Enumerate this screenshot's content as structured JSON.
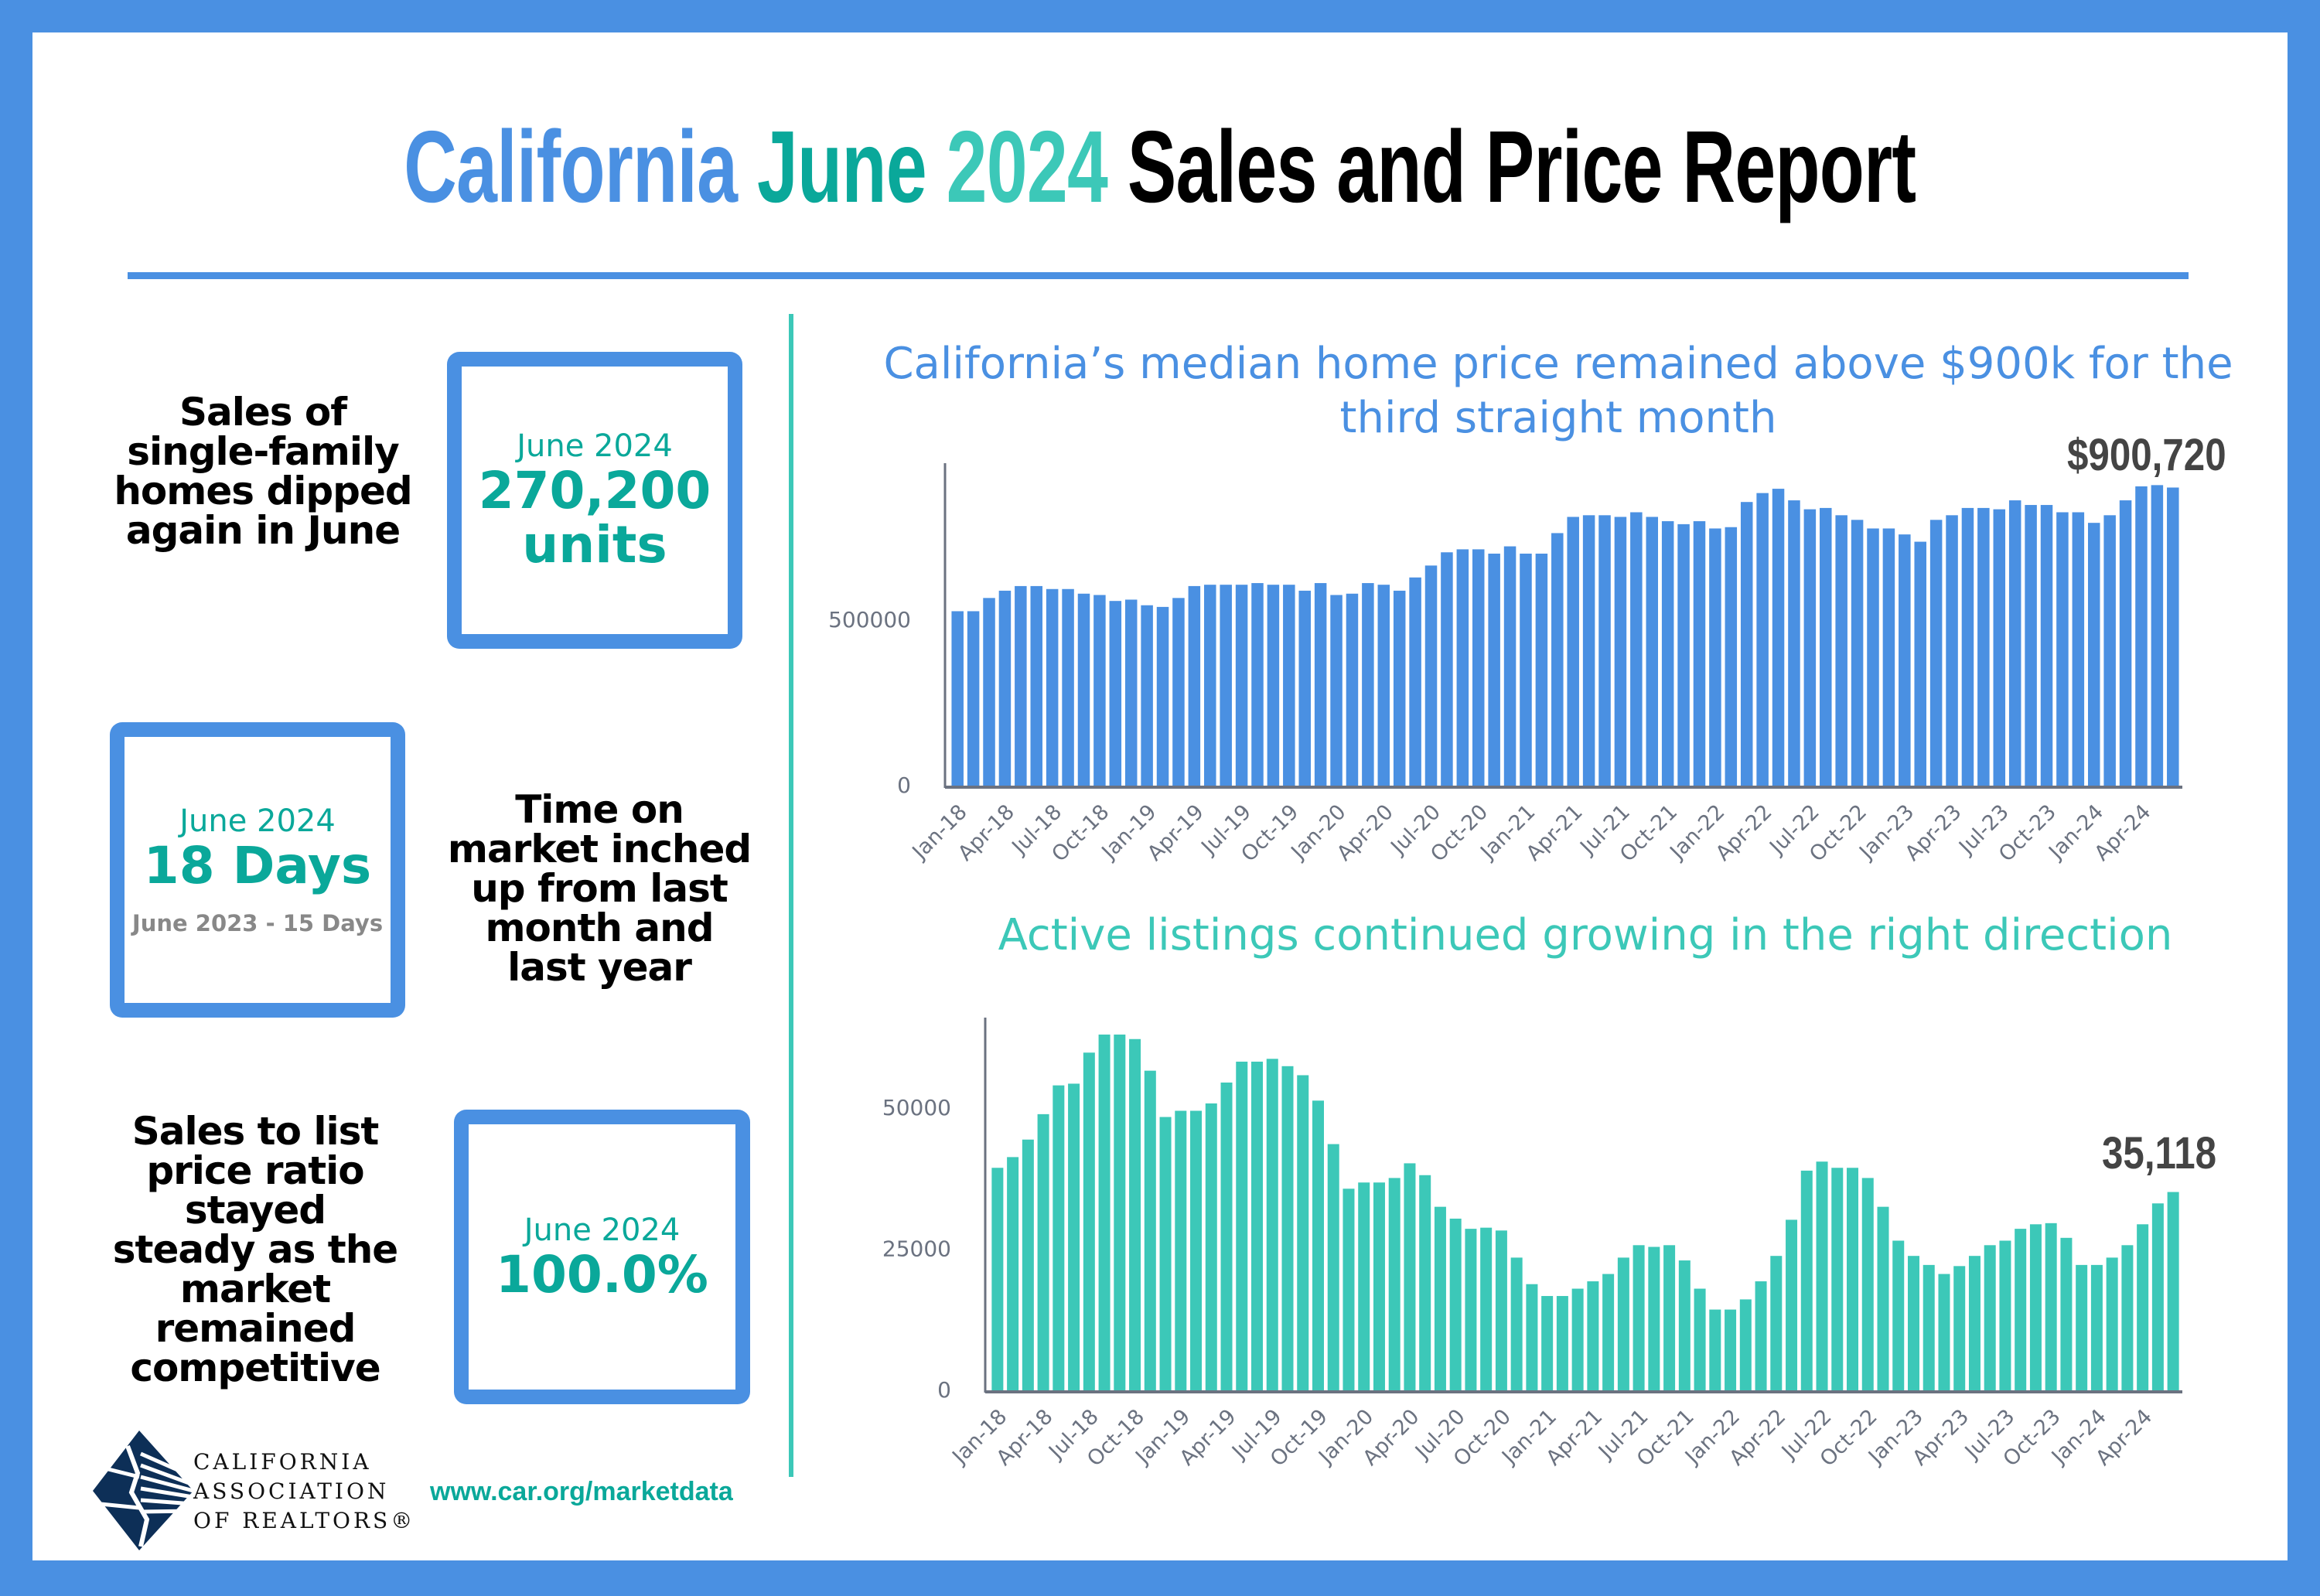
{
  "title": {
    "part1": "California",
    "part2": "June",
    "part3": "2024",
    "part4": "Sales and Price Report"
  },
  "colors": {
    "frame": "#4a90e2",
    "teal": "#0aa89a",
    "light_teal": "#3cc8b8",
    "price_bars": "#4a90e2",
    "listing_bars": "#3cc8b8"
  },
  "left": {
    "sales": {
      "description": "Sales of single-family homes dipped again in June",
      "period": "June 2024",
      "value": "270,200",
      "unit": "units"
    },
    "time_on_market": {
      "description": "Time on market inched up from last month and last year",
      "period": "June 2024",
      "value": "18 Days",
      "comparison": "June 2023 - 15 Days"
    },
    "sales_to_list": {
      "description": "Sales to list price ratio stayed steady as the market remained competitive",
      "period": "June 2024",
      "value": "100.0%"
    }
  },
  "logo": {
    "lines": [
      "CALIFORNIA",
      "ASSOCIATION",
      "OF REALTORS®"
    ]
  },
  "footer": {
    "url": "www.car.org/marketdata"
  },
  "chart_data": [
    {
      "type": "bar",
      "title": "California’s median home price remained above $900k for the third straight month",
      "callout": "$900,720",
      "ylim": [
        0,
        1000000
      ],
      "yticks": [
        "0",
        "500000"
      ],
      "grid": false,
      "x": [
        "Jan-18",
        "Feb-18",
        "Mar-18",
        "Apr-18",
        "May-18",
        "Jun-18",
        "Jul-18",
        "Aug-18",
        "Sep-18",
        "Oct-18",
        "Nov-18",
        "Dec-18",
        "Jan-19",
        "Feb-19",
        "Mar-19",
        "Apr-19",
        "May-19",
        "Jun-19",
        "Jul-19",
        "Aug-19",
        "Sep-19",
        "Oct-19",
        "Nov-19",
        "Dec-19",
        "Jan-20",
        "Feb-20",
        "Mar-20",
        "Apr-20",
        "May-20",
        "Jun-20",
        "Jul-20",
        "Aug-20",
        "Sep-20",
        "Oct-20",
        "Nov-20",
        "Dec-20",
        "Jan-21",
        "Feb-21",
        "Mar-21",
        "Apr-21",
        "May-21",
        "Jun-21",
        "Jul-21",
        "Aug-21",
        "Sep-21",
        "Oct-21",
        "Nov-21",
        "Dec-21",
        "Jan-22",
        "Feb-22",
        "Mar-22",
        "Apr-22",
        "May-22",
        "Jun-22",
        "Jul-22",
        "Aug-22",
        "Sep-22",
        "Oct-22",
        "Nov-22",
        "Dec-22",
        "Jan-23",
        "Feb-23",
        "Mar-23",
        "Apr-23",
        "May-23",
        "Jun-23",
        "Jul-23",
        "Aug-23",
        "Sep-23",
        "Oct-23",
        "Nov-23",
        "Dec-23",
        "Jan-24",
        "Feb-24",
        "Mar-24",
        "Apr-24",
        "May-24",
        "Jun-24"
      ],
      "values": [
        527000,
        527000,
        567000,
        589000,
        603000,
        603000,
        594000,
        594000,
        580000,
        576000,
        558000,
        562000,
        545000,
        540000,
        567000,
        603000,
        607000,
        607000,
        607000,
        612000,
        607000,
        607000,
        589000,
        612000,
        576000,
        580000,
        612000,
        607000,
        589000,
        629000,
        665000,
        705000,
        714000,
        714000,
        701000,
        723000,
        701000,
        701000,
        763000,
        812000,
        817000,
        817000,
        812000,
        826000,
        812000,
        799000,
        790000,
        799000,
        777000,
        781000,
        857000,
        884000,
        897000,
        862000,
        835000,
        839000,
        817000,
        803000,
        777000,
        777000,
        759000,
        737000,
        803000,
        817000,
        839000,
        839000,
        835000,
        862000,
        848000,
        848000,
        826000,
        826000,
        794000,
        817000,
        862000,
        904210,
        908040,
        900720
      ]
    },
    {
      "type": "bar",
      "title": "Active listings continued growing in the right direction",
      "callout": "35,118",
      "ylim": [
        0,
        66000
      ],
      "yticks": [
        "0",
        "25000",
        "50000"
      ],
      "grid": false,
      "x": [
        "Jan-18",
        "Feb-18",
        "Mar-18",
        "Apr-18",
        "May-18",
        "Jun-18",
        "Jul-18",
        "Aug-18",
        "Sep-18",
        "Oct-18",
        "Nov-18",
        "Dec-18",
        "Jan-19",
        "Feb-19",
        "Mar-19",
        "Apr-19",
        "May-19",
        "Jun-19",
        "Jul-19",
        "Aug-19",
        "Sep-19",
        "Oct-19",
        "Nov-19",
        "Dec-19",
        "Jan-20",
        "Feb-20",
        "Mar-20",
        "Apr-20",
        "May-20",
        "Jun-20",
        "Jul-20",
        "Aug-20",
        "Sep-20",
        "Oct-20",
        "Nov-20",
        "Dec-20",
        "Jan-21",
        "Feb-21",
        "Mar-21",
        "Apr-21",
        "May-21",
        "Jun-21",
        "Jul-21",
        "Aug-21",
        "Sep-21",
        "Oct-21",
        "Nov-21",
        "Dec-21",
        "Jan-22",
        "Feb-22",
        "Mar-22",
        "Apr-22",
        "May-22",
        "Jun-22",
        "Jul-22",
        "Aug-22",
        "Sep-22",
        "Oct-22",
        "Nov-22",
        "Dec-22",
        "Jan-23",
        "Feb-23",
        "Mar-23",
        "Apr-23",
        "May-23",
        "Jun-23",
        "Jul-23",
        "Aug-23",
        "Sep-23",
        "Oct-23",
        "Nov-23",
        "Dec-23",
        "Jan-24",
        "Feb-24",
        "Mar-24",
        "Apr-24",
        "May-24",
        "Jun-24"
      ],
      "values": [
        39400,
        41300,
        44400,
        48900,
        54000,
        54300,
        59800,
        63000,
        63000,
        62200,
        56600,
        48400,
        49500,
        49500,
        50800,
        54500,
        58200,
        58200,
        58700,
        57400,
        55800,
        51300,
        43600,
        35700,
        36800,
        36800,
        37600,
        40200,
        38100,
        32500,
        30400,
        28600,
        28800,
        28300,
        23500,
        18800,
        16700,
        16700,
        18000,
        19300,
        20600,
        23500,
        25700,
        25400,
        25700,
        23000,
        18000,
        14300,
        14300,
        16100,
        19300,
        23800,
        30200,
        38900,
        40500,
        39400,
        39400,
        37600,
        32500,
        26500,
        23800,
        22200,
        20600,
        22000,
        23800,
        25700,
        26500,
        28600,
        29400,
        29600,
        27000,
        22200,
        22200,
        23500,
        25700,
        29400,
        33100,
        35118
      ]
    }
  ]
}
